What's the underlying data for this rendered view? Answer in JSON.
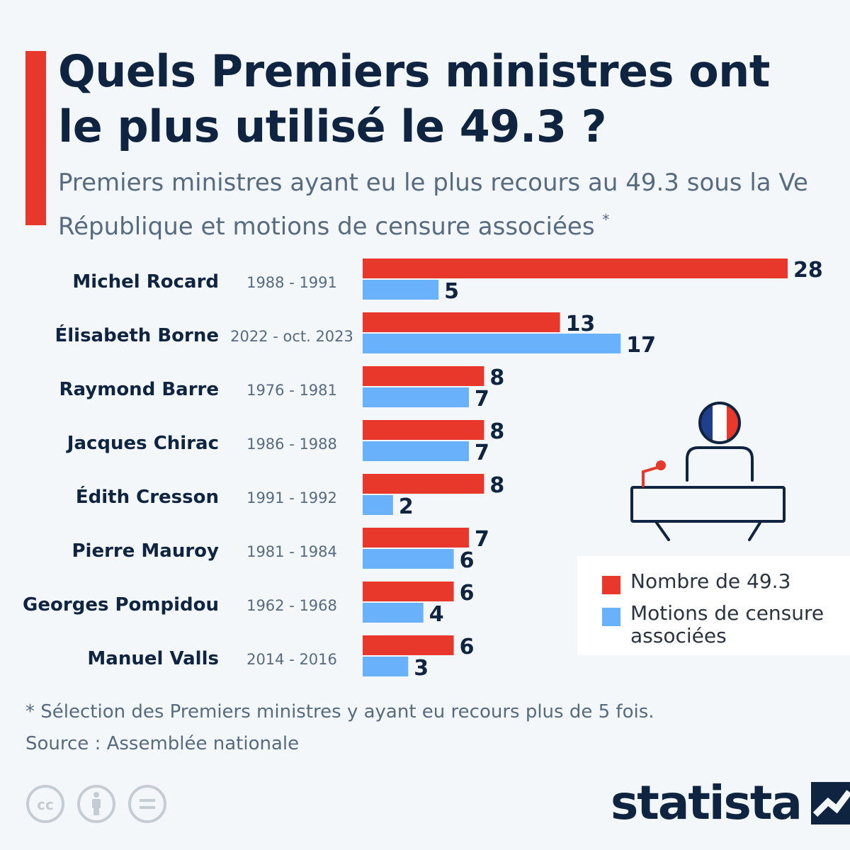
{
  "header": {
    "title": "Quels Premiers ministres ont le plus utilisé le 49.3 ?",
    "subtitle": "Premiers ministres ayant eu le plus recours au 49.3 sous la Ve République et motions de censure associées",
    "subtitle_marker": "*"
  },
  "colors": {
    "accent": "#e8372b",
    "series_493": "#e8372b",
    "series_motions": "#6ab1fb",
    "title": "#0e2440",
    "text_muted": "#566a80"
  },
  "chart_data": {
    "type": "bar",
    "orientation": "horizontal",
    "categories": [
      "Michel Rocard",
      "Élisabeth Borne",
      "Raymond Barre",
      "Jacques Chirac",
      "Édith Cresson",
      "Pierre Mauroy",
      "Georges Pompidou",
      "Manuel Valls"
    ],
    "periods": [
      "1988 - 1991",
      "2022 - oct. 2023",
      "1976 - 1981",
      "1986 - 1988",
      "1991 - 1992",
      "1981 - 1984",
      "1962 - 1968",
      "2014 - 2016"
    ],
    "series": [
      {
        "name": "Nombre de 49.3",
        "values": [
          28,
          13,
          8,
          8,
          8,
          7,
          6,
          6
        ]
      },
      {
        "name": "Motions de censure associées",
        "values": [
          5,
          17,
          7,
          7,
          2,
          6,
          4,
          3
        ]
      }
    ],
    "xlim": [
      0,
      28
    ],
    "legend_position": "bottom-right",
    "grid": false
  },
  "legend": {
    "items": [
      "Nombre de 49.3",
      "Motions de censure associées"
    ]
  },
  "footer": {
    "footnote": "* Sélection des Premiers ministres y ayant eu recours plus de 5 fois.",
    "source": "Source : Assemblée nationale",
    "logo": "statista",
    "license_icons": [
      "cc-icon",
      "attribution-icon",
      "no-derivatives-icon"
    ]
  }
}
